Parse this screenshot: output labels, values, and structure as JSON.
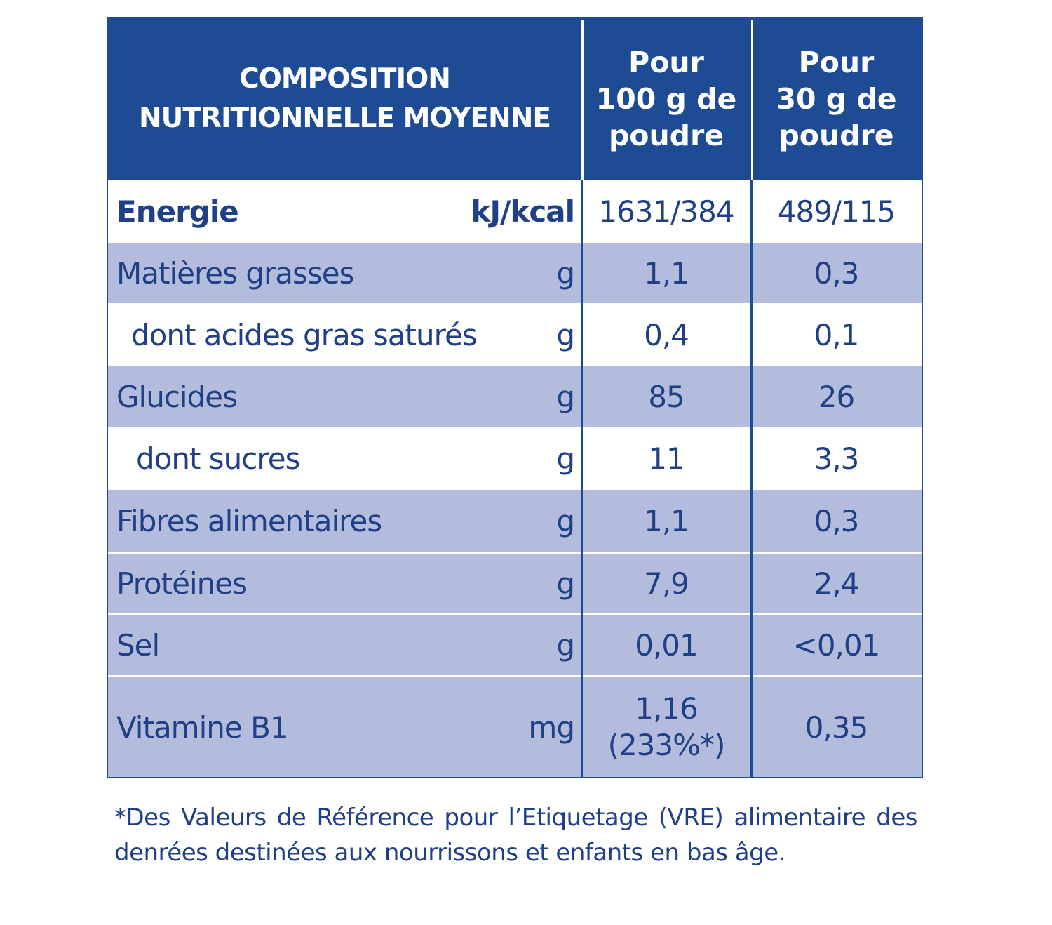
{
  "header": {
    "title_line1": "COMPOSITION",
    "title_line2": "NUTRITIONNELLE MOYENNE",
    "col1_line1": "Pour",
    "col1_line2": "100 g de",
    "col1_line3": "poudre",
    "col2_line1": "Pour",
    "col2_line2": "30 g de",
    "col2_line3": "poudre"
  },
  "rows": [
    {
      "label": "Energie",
      "unit": "kJ/kcal",
      "per100": "1631/384",
      "per30": "489/115"
    },
    {
      "label": "Matières grasses",
      "unit": "g",
      "per100": "1,1",
      "per30": "0,3"
    },
    {
      "label": "dont acides gras saturés",
      "unit": "g",
      "per100": "0,4",
      "per30": "0,1"
    },
    {
      "label": "Glucides",
      "unit": "g",
      "per100": "85",
      "per30": "26"
    },
    {
      "label": "dont sucres",
      "unit": "g",
      "per100": "11",
      "per30": "3,3"
    },
    {
      "label": "Fibres alimentaires",
      "unit": "g",
      "per100": "1,1",
      "per30": "0,3"
    },
    {
      "label": "Protéines",
      "unit": "g",
      "per100": "7,9",
      "per30": "2,4"
    },
    {
      "label": "Sel",
      "unit": "g",
      "per100": "0,01",
      "per30": "<0,01"
    },
    {
      "label": "Vitamine B1",
      "unit": "mg",
      "per100": "1,16",
      "per100_note": "(233%*)",
      "per30": "0,35"
    }
  ],
  "footnote": "*Des Valeurs de Référence pour l’Etiquetage (VRE) alimentaire des denrées destinées aux nourrissons et enfants en bas âge.",
  "colors": {
    "header_bg": "#1d4b94",
    "shaded_row": "#b3bcdd",
    "text": "#1f3f86"
  }
}
